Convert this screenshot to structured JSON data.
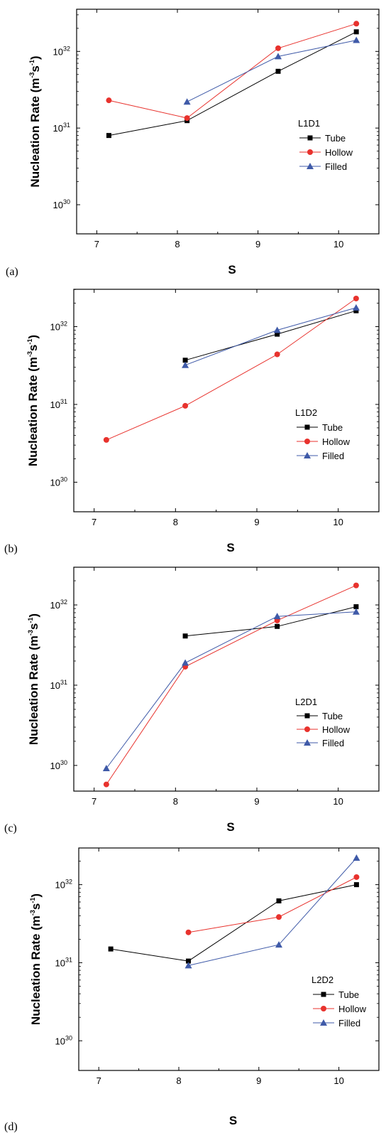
{
  "chart_data": [
    {
      "type": "line",
      "panel_label": "(a)",
      "legend_title": "L1D1",
      "xlabel": "S",
      "ylabel": "Nucleation Rate (m-3s-1)",
      "y_scale": "log",
      "xlim": [
        6.75,
        10.5
      ],
      "ylim_log10": [
        29.62,
        32.55
      ],
      "x_ticks": [
        "7",
        "8",
        "9",
        "10"
      ],
      "y_ticks": [
        {
          "base": "10",
          "exp": "30"
        },
        {
          "base": "10",
          "exp": "31"
        },
        {
          "base": "10",
          "exp": "32"
        }
      ],
      "legend_position": "right-middle",
      "series": [
        {
          "name": "Tube",
          "color": "#000000",
          "marker": "square",
          "x": [
            7.15,
            8.12,
            9.25,
            10.22
          ],
          "y": [
            8e+30,
            1.25e+31,
            5.5e+31,
            1.8e+32
          ]
        },
        {
          "name": "Hollow",
          "color": "#e8322d",
          "marker": "circle",
          "x": [
            7.15,
            8.12,
            9.25,
            10.22
          ],
          "y": [
            2.3e+31,
            1.35e+31,
            1.1e+32,
            2.3e+32
          ]
        },
        {
          "name": "Filled",
          "color": "#3f5aa8",
          "marker": "triangle",
          "x": [
            8.12,
            9.25,
            10.22
          ],
          "y": [
            2.2e+31,
            8.6e+31,
            1.4e+32
          ]
        }
      ]
    },
    {
      "type": "line",
      "panel_label": "(b)",
      "legend_title": "L1D2",
      "xlabel": "S",
      "ylabel": "Nucleation Rate (m-3s-1)",
      "y_scale": "log",
      "xlim": [
        6.75,
        10.5
      ],
      "ylim_log10": [
        29.62,
        32.48
      ],
      "x_ticks": [
        "7",
        "8",
        "9",
        "10"
      ],
      "y_ticks": [
        {
          "base": "10",
          "exp": "30"
        },
        {
          "base": "10",
          "exp": "31"
        },
        {
          "base": "10",
          "exp": "32"
        }
      ],
      "legend_position": "right-middle",
      "series": [
        {
          "name": "Tube",
          "color": "#000000",
          "marker": "square",
          "x": [
            8.12,
            9.25,
            10.22
          ],
          "y": [
            3.7e+31,
            8e+31,
            1.6e+32
          ]
        },
        {
          "name": "Hollow",
          "color": "#e8322d",
          "marker": "circle",
          "x": [
            7.15,
            8.12,
            9.25,
            10.22
          ],
          "y": [
            3.5e+30,
            9.6e+30,
            4.4e+31,
            2.3e+32
          ]
        },
        {
          "name": "Filled",
          "color": "#3f5aa8",
          "marker": "triangle",
          "x": [
            8.12,
            9.25,
            10.22
          ],
          "y": [
            3.2e+31,
            9e+31,
            1.75e+32
          ]
        }
      ]
    },
    {
      "type": "line",
      "panel_label": "(c)",
      "legend_title": "L2D1",
      "xlabel": "S",
      "ylabel": "Nucleation Rate (m-3s-1)",
      "y_scale": "log",
      "xlim": [
        6.75,
        10.5
      ],
      "ylim_log10": [
        29.68,
        32.47
      ],
      "x_ticks": [
        "7",
        "8",
        "9",
        "10"
      ],
      "y_ticks": [
        {
          "base": "10",
          "exp": "30"
        },
        {
          "base": "10",
          "exp": "31"
        },
        {
          "base": "10",
          "exp": "32"
        }
      ],
      "legend_position": "right-bottom",
      "series": [
        {
          "name": "Tube",
          "color": "#000000",
          "marker": "square",
          "x": [
            8.12,
            9.25,
            10.22
          ],
          "y": [
            4.1e+31,
            5.4e+31,
            9.5e+31
          ]
        },
        {
          "name": "Hollow",
          "color": "#e8322d",
          "marker": "circle",
          "x": [
            7.15,
            8.12,
            9.25,
            10.22
          ],
          "y": [
            5.8e+29,
            1.7e+31,
            6.4e+31,
            1.75e+32
          ]
        },
        {
          "name": "Filled",
          "color": "#3f5aa8",
          "marker": "triangle",
          "x": [
            7.15,
            8.12,
            9.25,
            10.22
          ],
          "y": [
            9.2e+29,
            1.9e+31,
            7.2e+31,
            8.2e+31
          ]
        }
      ]
    },
    {
      "type": "line",
      "panel_label": "(d)",
      "legend_title": "L2D2",
      "xlabel": "S",
      "ylabel": "Nucleation Rate (m-3s-1)",
      "y_scale": "log",
      "xlim": [
        6.75,
        10.5
      ],
      "ylim_log10": [
        29.62,
        32.47
      ],
      "x_ticks": [
        "7",
        "8",
        "9",
        "10"
      ],
      "y_ticks": [
        {
          "base": "10",
          "exp": "30"
        },
        {
          "base": "10",
          "exp": "31"
        },
        {
          "base": "10",
          "exp": "32"
        }
      ],
      "legend_position": "right-middle",
      "series": [
        {
          "name": "Tube",
          "color": "#000000",
          "marker": "square",
          "x": [
            7.15,
            8.12,
            9.25,
            10.22
          ],
          "y": [
            1.5e+31,
            1.05e+31,
            6.2e+31,
            1e+32
          ]
        },
        {
          "name": "Hollow",
          "color": "#e8322d",
          "marker": "circle",
          "x": [
            8.12,
            9.25,
            10.22
          ],
          "y": [
            2.45e+31,
            3.85e+31,
            1.25e+32
          ]
        },
        {
          "name": "Filled",
          "color": "#3f5aa8",
          "marker": "triangle",
          "x": [
            8.12,
            9.25,
            10.22
          ],
          "y": [
            9.2e+30,
            1.7e+31,
            2.2e+32
          ]
        }
      ]
    }
  ]
}
